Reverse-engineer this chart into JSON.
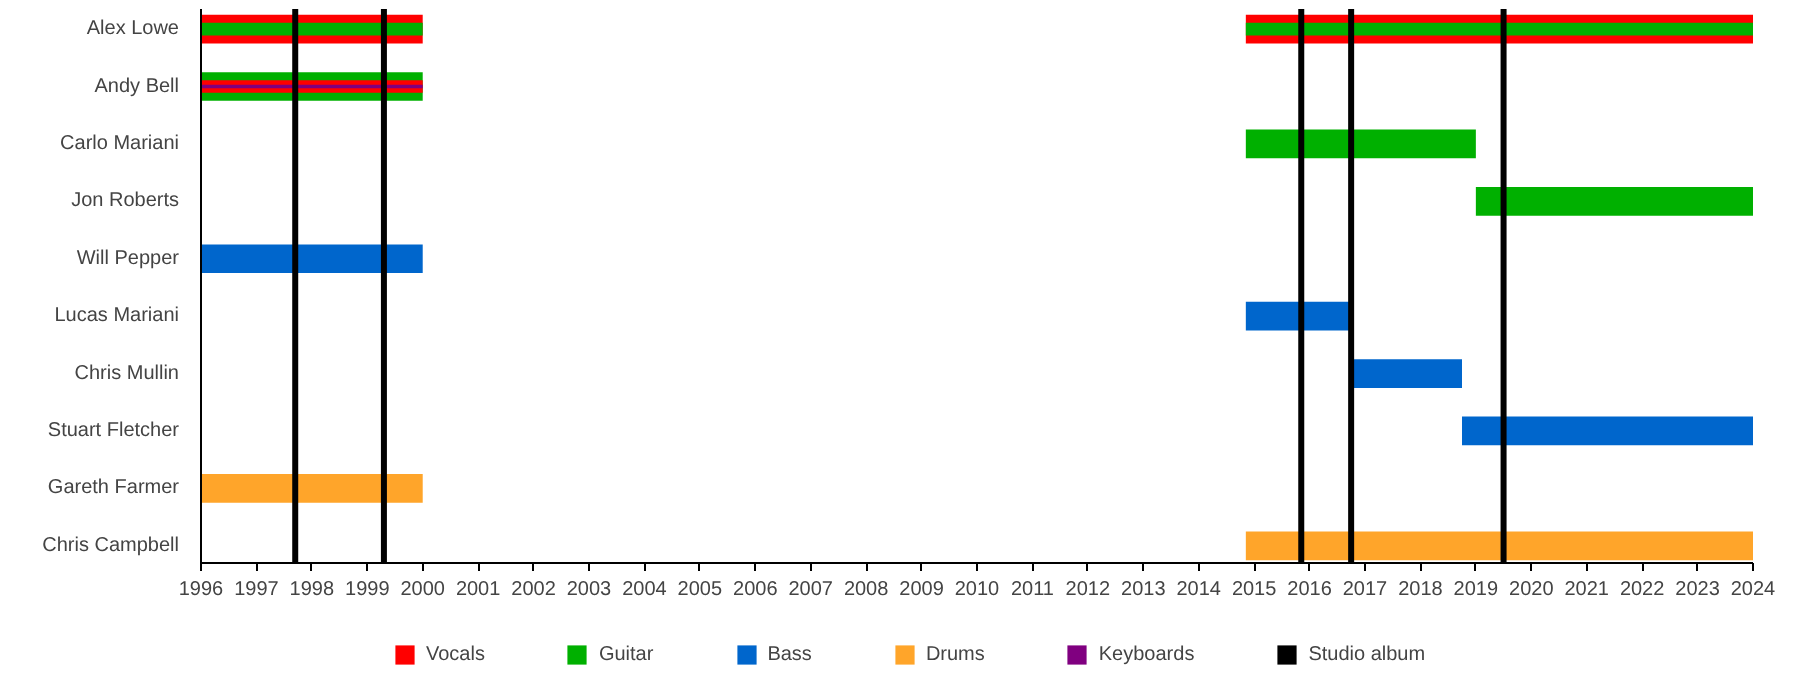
{
  "chart_data": {
    "type": "bar",
    "orientation": "horizontal",
    "categories": [
      "Alex Lowe",
      "Andy Bell",
      "Carlo Mariani",
      "Jon Roberts",
      "Will Pepper",
      "Lucas Mariani",
      "Chris Mullin",
      "Stuart Fletcher",
      "Gareth Farmer",
      "Chris Campbell"
    ],
    "series": [
      {
        "name": "Vocals",
        "color": "#ff0000",
        "base": [
          1996,
          null,
          null,
          null,
          null,
          null,
          null,
          null,
          null,
          null
        ],
        "values": [
          4,
          null,
          null,
          null,
          null,
          null,
          null,
          null,
          null,
          null
        ]
      },
      {
        "name": "Guitar",
        "color": "#00b000",
        "base": [
          null,
          1996,
          2014.85,
          2019,
          null,
          null,
          null,
          null,
          null,
          null
        ],
        "values": [
          null,
          4,
          4.15,
          5,
          null,
          null,
          null,
          null,
          null,
          null
        ]
      },
      {
        "name": "Bass",
        "color": "#0066cc",
        "base": [
          null,
          null,
          null,
          null,
          1996,
          2014.85,
          2016.8,
          2018.75,
          null,
          null
        ],
        "values": [
          null,
          null,
          null,
          null,
          4,
          1.95,
          1.95,
          5.25,
          null,
          null
        ]
      },
      {
        "name": "Drums",
        "color": "#ffa52a",
        "base": [
          null,
          null,
          null,
          null,
          null,
          null,
          null,
          null,
          1996,
          2014.85
        ],
        "values": [
          null,
          null,
          null,
          null,
          null,
          null,
          null,
          null,
          4,
          9.15
        ]
      },
      {
        "color": "#ff0000",
        "base": [
          2014.85,
          1996,
          null,
          null,
          null,
          null,
          null,
          null,
          null,
          null
        ],
        "values": [
          9.15,
          4,
          null,
          null,
          null,
          null,
          null,
          null,
          null,
          null
        ]
      },
      {
        "color": "#00b000",
        "base": [
          1996,
          null,
          null,
          null,
          null,
          null,
          null,
          null,
          null,
          null
        ],
        "values": [
          4,
          null,
          null,
          null,
          null,
          null,
          null,
          null,
          null,
          null
        ]
      },
      {
        "color": "#00b000",
        "base": [
          2014.85,
          null,
          null,
          null,
          null,
          null,
          null,
          null,
          null,
          null
        ],
        "values": [
          9.15,
          null,
          null,
          null,
          null,
          null,
          null,
          null,
          null,
          null
        ]
      },
      {
        "name": "Keyboards",
        "color": "#800080",
        "base": [
          null,
          1996,
          null,
          null,
          null,
          null,
          null,
          null,
          null,
          null
        ],
        "values": [
          null,
          4,
          null,
          null,
          null,
          null,
          null,
          null,
          null,
          null
        ]
      }
    ],
    "ref_lines": [
      {
        "axis": "x",
        "value": 1997.7,
        "label": "Studio album",
        "color": "#000000"
      },
      {
        "axis": "x",
        "value": 1999.3,
        "label": null,
        "color": "#000000"
      },
      {
        "axis": "x",
        "value": 2015.85,
        "label": null,
        "color": "#000000"
      },
      {
        "axis": "x",
        "value": 2016.75,
        "label": null,
        "color": "#000000"
      },
      {
        "axis": "x",
        "value": 2019.5,
        "label": null,
        "color": "#000000"
      }
    ],
    "xlim": [
      1996,
      2024
    ],
    "xticks": [
      1996,
      1997,
      1998,
      1999,
      2000,
      2001,
      2002,
      2003,
      2004,
      2005,
      2006,
      2007,
      2008,
      2009,
      2010,
      2011,
      2012,
      2013,
      2014,
      2015,
      2016,
      2017,
      2018,
      2019,
      2020,
      2021,
      2022,
      2023,
      2024
    ],
    "grid": false,
    "legend": "bottom"
  }
}
